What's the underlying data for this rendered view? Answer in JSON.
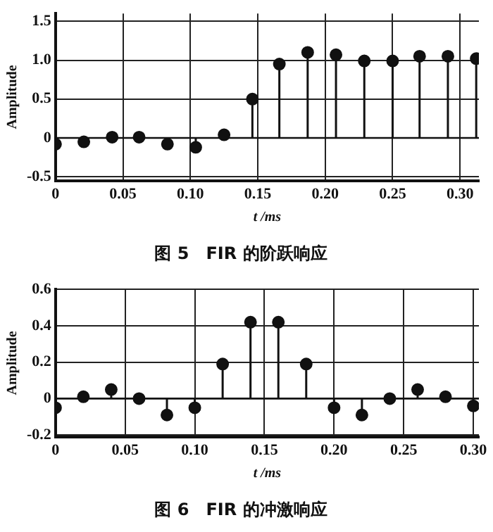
{
  "chart_data": [
    {
      "type": "lollipop",
      "title": "图 5　FIR 的阶跃响应",
      "xlabel": "t /ms",
      "ylabel": "Amplitude",
      "marker": "circle",
      "grid": true,
      "x": [
        0,
        0.021,
        0.042,
        0.062,
        0.083,
        0.104,
        0.125,
        0.146,
        0.166,
        0.187,
        0.208,
        0.229,
        0.25,
        0.27,
        0.291,
        0.312
      ],
      "series": [
        {
          "color": "#111111",
          "values": [
            -0.08,
            -0.05,
            0.01,
            0.01,
            -0.08,
            -0.12,
            0.04,
            0.5,
            0.95,
            1.1,
            1.07,
            0.99,
            0.99,
            1.05,
            1.05,
            1.02
          ]
        }
      ],
      "xlim": [
        0,
        0.314
      ],
      "xticks": [
        0,
        0.05,
        {
          "value": 0.1,
          "label": "0.10"
        },
        0.15,
        {
          "value": 0.2,
          "label": "0.20"
        },
        0.25,
        {
          "value": 0.3,
          "label": "0.30"
        }
      ],
      "ylim": [
        -0.55,
        1.6
      ],
      "yticks": [
        -0.5,
        0,
        0.5,
        {
          "value": 1,
          "label": "1.0"
        },
        1.5
      ]
    },
    {
      "type": "lollipop",
      "title": "图 6　FIR 的冲激响应",
      "xlabel": "t /ms",
      "ylabel": "Amplitude",
      "marker": "circle",
      "grid": true,
      "x": [
        0,
        0.02,
        0.04,
        0.06,
        0.08,
        0.1,
        0.12,
        0.14,
        0.16,
        0.18,
        0.2,
        0.22,
        0.24,
        0.26,
        0.28,
        0.3
      ],
      "series": [
        {
          "color": "#111111",
          "values": [
            -0.05,
            0.01,
            0.05,
            0.0,
            -0.09,
            -0.05,
            0.19,
            0.42,
            0.42,
            0.19,
            -0.05,
            -0.09,
            0.0,
            0.05,
            0.01,
            -0.04
          ]
        }
      ],
      "xlim": [
        0,
        0.304
      ],
      "xticks": [
        0,
        0.05,
        {
          "value": 0.1,
          "label": "0.10"
        },
        0.15,
        {
          "value": 0.2,
          "label": "0.20"
        },
        0.25,
        {
          "value": 0.3,
          "label": "0.30"
        }
      ],
      "ylim": [
        -0.21,
        0.6
      ],
      "yticks": [
        -0.2,
        0,
        0.2,
        0.4,
        0.6
      ]
    }
  ]
}
